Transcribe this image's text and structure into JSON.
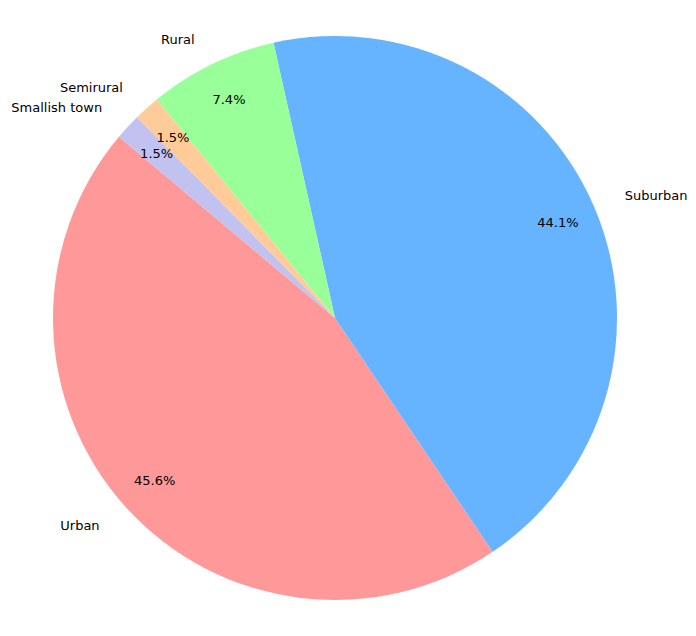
{
  "chart_data": {
    "type": "pie",
    "categories": [
      "Urban",
      "Suburban",
      "Rural",
      "Semirural",
      "Smallish town"
    ],
    "values": [
      45.6,
      44.1,
      7.4,
      1.5,
      1.5
    ],
    "value_labels": [
      "45.6%",
      "44.1%",
      "7.4%",
      "1.5%",
      "1.5%"
    ],
    "colors": [
      "#ff9999",
      "#66b3ff",
      "#99ff99",
      "#ffcc99",
      "#c2c2f0"
    ],
    "data_labels": true
  }
}
